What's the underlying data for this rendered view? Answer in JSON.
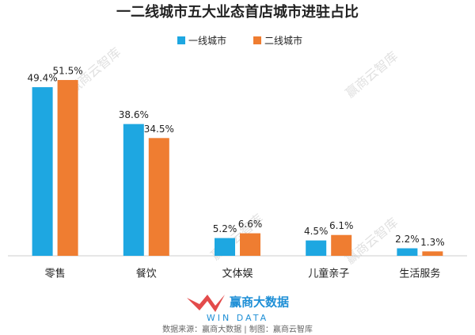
{
  "chart_data": {
    "type": "bar",
    "title": "一二线城市五大业态首店城市进驻占比",
    "categories": [
      "零售",
      "餐饮",
      "文体娱",
      "儿童亲子",
      "生活服务"
    ],
    "series": [
      {
        "name": "一线城市",
        "color": "#1ea7e1",
        "values": [
          49.4,
          38.6,
          5.2,
          4.5,
          2.2
        ],
        "value_labels": [
          "49.4%",
          "38.6%",
          "5.2%",
          "4.5%",
          "2.2%"
        ]
      },
      {
        "name": "二线城市",
        "color": "#ef7d31",
        "values": [
          51.5,
          34.5,
          6.6,
          6.1,
          1.3
        ],
        "value_labels": [
          "51.5%",
          "34.5%",
          "6.6%",
          "6.1%",
          "1.3%"
        ]
      }
    ],
    "legend": "top",
    "watermark": "赢商云智库",
    "logo": {
      "name": "赢商大数据",
      "subtitle": "WIN DATA"
    },
    "source": "数据来源：赢商大数据 | 制图：赢商云智库"
  }
}
